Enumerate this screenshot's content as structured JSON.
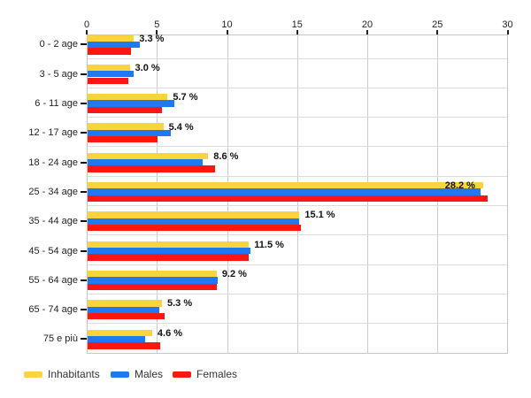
{
  "chart_data": {
    "type": "bar",
    "orientation": "horizontal",
    "categories": [
      "0 - 2 age",
      "3 - 5 age",
      "6 - 11 age",
      "12 - 17 age",
      "18 - 24 age",
      "25 - 34 age",
      "35 - 44 age",
      "45 - 54 age",
      "55 - 64 age",
      "65 - 74 age",
      "75 e più"
    ],
    "series": [
      {
        "name": "Inhabitants",
        "color": "#F9D43C",
        "values": [
          3.3,
          3.0,
          5.7,
          5.4,
          8.6,
          28.2,
          15.1,
          11.5,
          9.2,
          5.3,
          4.6
        ]
      },
      {
        "name": "Males",
        "color": "#1F7AF2",
        "values": [
          3.7,
          3.3,
          6.2,
          5.9,
          8.2,
          28.0,
          15.1,
          11.6,
          9.3,
          5.1,
          4.1
        ]
      },
      {
        "name": "Females",
        "color": "#FC1712",
        "values": [
          3.1,
          2.9,
          5.3,
          5.0,
          9.1,
          28.5,
          15.2,
          11.5,
          9.2,
          5.5,
          5.2
        ]
      }
    ],
    "data_labels": [
      "3.3 %",
      "3.0 %",
      "5.7 %",
      "5.4 %",
      "8.6 %",
      "28.2 %",
      "15.1 %",
      "11.5 %",
      "9.2 %",
      "5.3 %",
      "4.6 %"
    ],
    "data_label_series": "Inhabitants",
    "xlim": [
      0,
      30
    ],
    "x_ticks": [
      "0",
      "5",
      "10",
      "15",
      "20",
      "25",
      "30"
    ],
    "grid": true,
    "legend_position": "bottom-left"
  },
  "legend": {
    "items": [
      {
        "label": "Inhabitants",
        "color": "#F9D43C"
      },
      {
        "label": "Males",
        "color": "#1F7AF2"
      },
      {
        "label": "Females",
        "color": "#FC1712"
      }
    ]
  },
  "colors": {
    "background": "#ffffff",
    "plot_border": "#c6c6c6",
    "vertical_grid": "#cccccc",
    "horizontal_grid": "#dcdcdc",
    "axis_text": "#222222",
    "data_label_text": "#111111"
  }
}
